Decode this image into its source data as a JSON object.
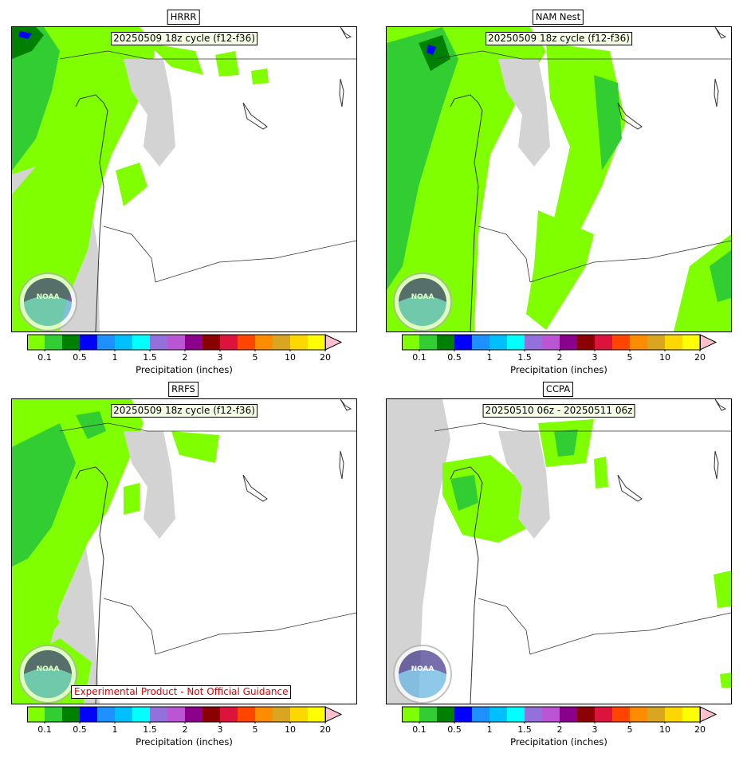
{
  "panels": [
    {
      "title": "HRRR",
      "label": "20250509 18z cycle (f12-f36)",
      "disclaimer": ""
    },
    {
      "title": "NAM Nest",
      "label": "20250509 18z cycle (f12-f36)",
      "disclaimer": ""
    },
    {
      "title": "RRFS",
      "label": "20250509 18z cycle (f12-f36)",
      "disclaimer": "Experimental Product - Not Official Guidance"
    },
    {
      "title": "CCPA",
      "label": "20250510 06z - 20250511 06z",
      "disclaimer": ""
    }
  ],
  "colorbar": {
    "label": "Precipitation (inches)",
    "ticks": [
      "0.1",
      "0.5",
      "1",
      "1.5",
      "2",
      "3",
      "5",
      "10",
      "20"
    ],
    "colors": [
      "#7fff00",
      "#32cd32",
      "#008000",
      "#0000ff",
      "#1e90ff",
      "#00bfff",
      "#00ffff",
      "#9370db",
      "#ba55d3",
      "#8b008b",
      "#8b0000",
      "#dc143c",
      "#ff4500",
      "#ff8c00",
      "#daa520",
      "#ffd700",
      "#ffff00"
    ],
    "extend_color": "#ffc0cb"
  },
  "logo": {
    "text": "NOAA"
  },
  "colors": {
    "land_mask": "#d3d3d3",
    "light_green": "#7fff00",
    "green": "#32cd32"
  }
}
